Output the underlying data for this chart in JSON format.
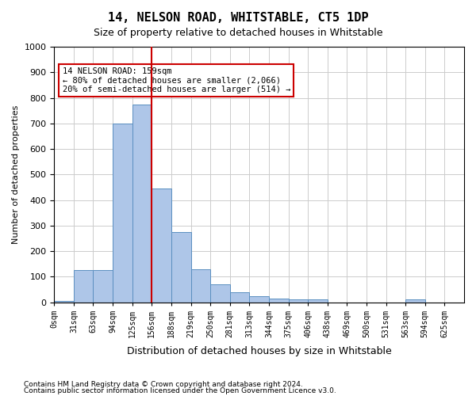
{
  "title": "14, NELSON ROAD, WHITSTABLE, CT5 1DP",
  "subtitle": "Size of property relative to detached houses in Whitstable",
  "xlabel": "Distribution of detached houses by size in Whitstable",
  "ylabel": "Number of detached properties",
  "bar_color": "#aec6e8",
  "bar_edge_color": "#5a8fc0",
  "background_color": "#ffffff",
  "grid_color": "#cccccc",
  "bins": [
    "0sqm",
    "31sqm",
    "63sqm",
    "94sqm",
    "125sqm",
    "156sqm",
    "188sqm",
    "219sqm",
    "250sqm",
    "281sqm",
    "313sqm",
    "344sqm",
    "375sqm",
    "406sqm",
    "438sqm",
    "469sqm",
    "500sqm",
    "531sqm",
    "563sqm",
    "594sqm",
    "625sqm"
  ],
  "values": [
    5,
    125,
    125,
    700,
    775,
    445,
    275,
    130,
    70,
    40,
    25,
    15,
    10,
    10,
    0,
    0,
    0,
    0,
    10,
    0,
    0
  ],
  "ylim": [
    0,
    1000
  ],
  "yticks": [
    0,
    100,
    200,
    300,
    400,
    500,
    600,
    700,
    800,
    900,
    1000
  ],
  "vline_x": 5,
  "vline_color": "#cc0000",
  "annotation_text": "14 NELSON ROAD: 159sqm\n← 80% of detached houses are smaller (2,066)\n20% of semi-detached houses are larger (514) →",
  "annotation_box_color": "#ffffff",
  "annotation_box_edge_color": "#cc0000",
  "footer_line1": "Contains HM Land Registry data © Crown copyright and database right 2024.",
  "footer_line2": "Contains public sector information licensed under the Open Government Licence v3.0."
}
